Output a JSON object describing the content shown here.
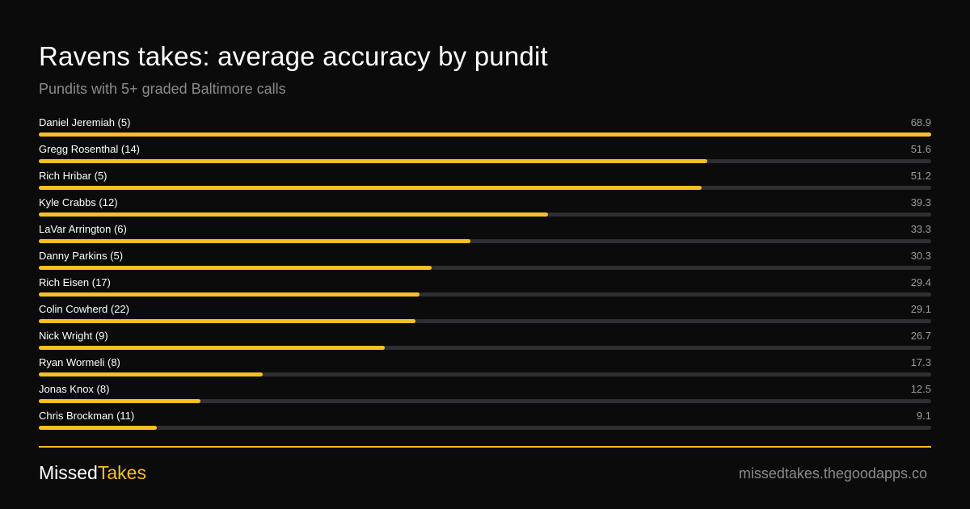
{
  "colors": {
    "background": "#0b0b0b",
    "accent": "#fbbf24",
    "track": "#2e2e33",
    "muted": "#8a8a8e"
  },
  "header": {
    "title": "Ravens takes: average accuracy by pundit",
    "subtitle": "Pundits with 5+ graded Baltimore calls"
  },
  "footer": {
    "brand_part1": "Missed",
    "brand_part2": "Takes",
    "site": "missedtakes.thegoodapps.co"
  },
  "chart_data": {
    "type": "bar",
    "orientation": "horizontal",
    "title": "Ravens takes: average accuracy by pundit",
    "subtitle": "Pundits with 5+ graded Baltimore calls",
    "xlim": [
      0,
      68.9
    ],
    "grid": false,
    "categories": [
      "Daniel Jeremiah (5)",
      "Gregg Rosenthal (14)",
      "Rich Hribar (5)",
      "Kyle Crabbs (12)",
      "LaVar Arrington (6)",
      "Danny Parkins (5)",
      "Rich Eisen (17)",
      "Colin Cowherd (22)",
      "Nick Wright (9)",
      "Ryan Wormeli (8)",
      "Jonas Knox (8)",
      "Chris Brockman (11)"
    ],
    "values": [
      68.9,
      51.6,
      51.2,
      39.3,
      33.3,
      30.3,
      29.4,
      29.1,
      26.7,
      17.3,
      12.5,
      9.1
    ],
    "value_labels": [
      "68.9",
      "51.6",
      "51.2",
      "39.3",
      "33.3",
      "30.3",
      "29.4",
      "29.1",
      "26.7",
      "17.3",
      "12.5",
      "9.1"
    ]
  }
}
